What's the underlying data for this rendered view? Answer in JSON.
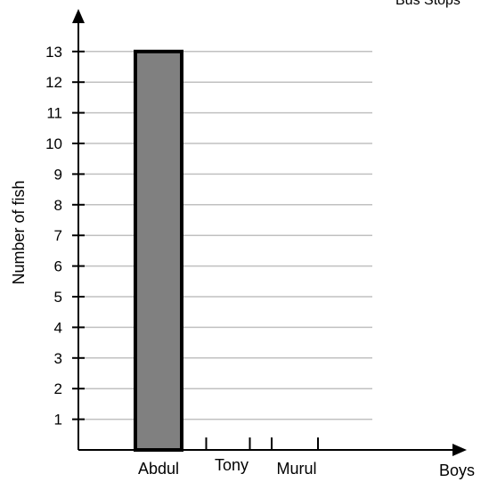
{
  "corner_text": "Bus Stops",
  "chart_data": {
    "type": "bar",
    "title": "",
    "xlabel": "Boys",
    "ylabel": "Number of fish",
    "categories": [
      "Abdul",
      "Tony",
      "Murul"
    ],
    "values": [
      13,
      null,
      null
    ],
    "ylim": [
      0,
      13
    ],
    "yticks": [
      1,
      2,
      3,
      4,
      5,
      6,
      7,
      8,
      9,
      10,
      11,
      12,
      13
    ],
    "grid": true,
    "bar_color": "#808080",
    "bar_edge_color": "#000000",
    "grid_color": "#c0c0c0"
  }
}
